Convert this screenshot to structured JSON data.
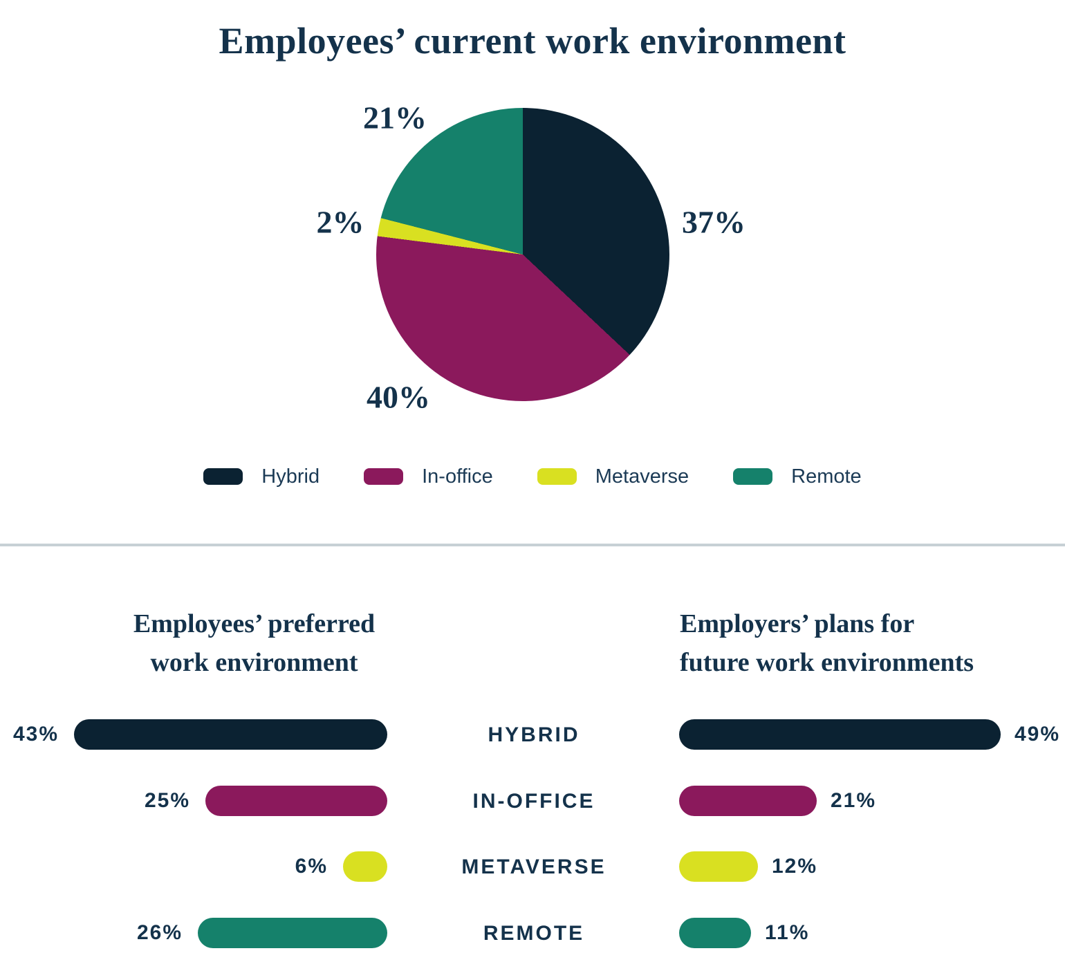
{
  "colors": {
    "navy": "#0b2232",
    "magenta": "#8b195c",
    "yellow": "#d9e021",
    "teal": "#15816b",
    "text_navy": "#14324b",
    "divider_gray": "#c7d0d5"
  },
  "pie_section": {
    "title": "Employees’ current work environment",
    "slice_labels": [
      "37%",
      "40%",
      "2%",
      "21%"
    ]
  },
  "legend": {
    "items": [
      "Hybrid",
      "In-office",
      "Metaverse",
      "Remote"
    ]
  },
  "bottom_section": {
    "left_title": {
      "line1": "Employees’ preferred",
      "line2": "work environment"
    },
    "right_title": {
      "line1": "Employers’ plans for",
      "line2": "future work environments"
    },
    "category_labels": [
      "HYBRID",
      "IN-OFFICE",
      "METAVERSE",
      "REMOTE"
    ]
  },
  "chart_data": [
    {
      "type": "pie",
      "title": "Employees’ current work environment",
      "categories": [
        "Hybrid",
        "In-office",
        "Metaverse",
        "Remote"
      ],
      "values": [
        37,
        40,
        2,
        21
      ],
      "value_labels": [
        "37%",
        "40%",
        "2%",
        "21%"
      ],
      "colors": [
        "#0b2232",
        "#8b195c",
        "#d9e021",
        "#15816b"
      ],
      "start_angle_deg": 0,
      "direction": "clockwise",
      "legend_position": "bottom"
    },
    {
      "type": "bar",
      "orientation": "horizontal",
      "bars_grow": "right-to-left",
      "title": "Employees’ preferred work environment",
      "categories": [
        "Hybrid",
        "In-office",
        "Metaverse",
        "Remote"
      ],
      "values": [
        43,
        25,
        6,
        26
      ],
      "value_labels": [
        "43%",
        "25%",
        "6%",
        "26%"
      ],
      "colors": [
        "#0b2232",
        "#8b195c",
        "#d9e021",
        "#15816b"
      ],
      "xlim": [
        0,
        43
      ],
      "grid": false
    },
    {
      "type": "bar",
      "orientation": "horizontal",
      "bars_grow": "left-to-right",
      "title": "Employers’ plans for future work environments",
      "categories": [
        "Hybrid",
        "In-office",
        "Metaverse",
        "Remote"
      ],
      "values": [
        49,
        21,
        12,
        11
      ],
      "value_labels": [
        "49%",
        "21%",
        "12%",
        "11%"
      ],
      "colors": [
        "#0b2232",
        "#8b195c",
        "#d9e021",
        "#15816b"
      ],
      "xlim": [
        0,
        49
      ],
      "grid": false
    }
  ]
}
